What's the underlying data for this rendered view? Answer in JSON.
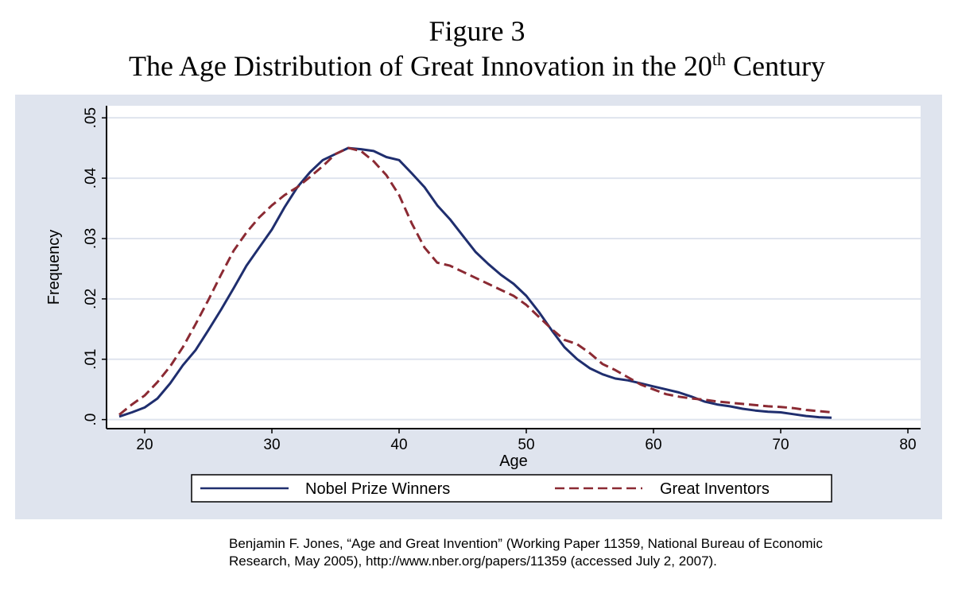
{
  "figure": {
    "label": "Figure 3",
    "title_main": "The Age Distribution of Great Innovation in the 20",
    "title_sup": "th",
    "title_end": " Century"
  },
  "source_note": "Benjamin F. Jones, “Age and Great Invention” (Working Paper 11359, National Bureau of Economic Research, May 2005), http://www.nber.org/papers/11359 (accessed July 2, 2007).",
  "colors": {
    "panel_background": "#dfe4ee",
    "plot_background": "#ffffff",
    "grid": "#dfe4ee",
    "nobel": "#1f2e6e",
    "inventors": "#8b2a33"
  },
  "chart_data": {
    "type": "line",
    "xlabel": "Age",
    "ylabel": "Frequency",
    "xlim": [
      17,
      81
    ],
    "ylim": [
      -0.0015,
      0.052
    ],
    "x_ticks": [
      20,
      30,
      40,
      50,
      60,
      70,
      80
    ],
    "x_tick_labels": [
      "20",
      "30",
      "40",
      "50",
      "60",
      "70",
      "80"
    ],
    "y_ticks": [
      0,
      0.01,
      0.02,
      0.03,
      0.04,
      0.05
    ],
    "y_tick_labels": [
      ".0",
      ".01",
      ".02",
      ".03",
      ".04",
      ".05"
    ],
    "grid": true,
    "legend_position": "bottom",
    "series": [
      {
        "name": "Nobel Prize Winners",
        "style": "solid",
        "x": [
          18,
          19,
          20,
          21,
          22,
          23,
          24,
          25,
          26,
          27,
          28,
          29,
          30,
          31,
          32,
          33,
          34,
          35,
          36,
          37,
          38,
          39,
          40,
          41,
          42,
          43,
          44,
          45,
          46,
          47,
          48,
          49,
          50,
          51,
          52,
          53,
          54,
          55,
          56,
          57,
          58,
          59,
          60,
          61,
          62,
          63,
          64,
          65,
          66,
          67,
          68,
          69,
          70,
          71,
          72,
          73,
          74
        ],
        "y": [
          0.0005,
          0.0012,
          0.002,
          0.0035,
          0.006,
          0.009,
          0.0115,
          0.0148,
          0.0182,
          0.0218,
          0.0255,
          0.0285,
          0.0315,
          0.0352,
          0.0385,
          0.041,
          0.043,
          0.044,
          0.045,
          0.0448,
          0.0445,
          0.0435,
          0.043,
          0.0408,
          0.0385,
          0.0355,
          0.0332,
          0.0305,
          0.0278,
          0.0258,
          0.024,
          0.0225,
          0.0205,
          0.0178,
          0.0148,
          0.012,
          0.01,
          0.0085,
          0.0075,
          0.0068,
          0.0065,
          0.006,
          0.0055,
          0.005,
          0.0045,
          0.0038,
          0.003,
          0.0025,
          0.0022,
          0.0018,
          0.0015,
          0.0013,
          0.0012,
          0.0009,
          0.0006,
          0.0004,
          0.0003
        ]
      },
      {
        "name": "Great Inventors",
        "style": "dashed",
        "x": [
          18,
          19,
          20,
          21,
          22,
          23,
          24,
          25,
          26,
          27,
          28,
          29,
          30,
          31,
          32,
          33,
          34,
          35,
          36,
          37,
          38,
          39,
          40,
          41,
          42,
          43,
          44,
          45,
          46,
          47,
          48,
          49,
          50,
          51,
          52,
          53,
          54,
          55,
          56,
          57,
          58,
          59,
          60,
          61,
          62,
          63,
          64,
          65,
          66,
          67,
          68,
          69,
          70,
          71,
          72,
          73,
          74
        ],
        "y": [
          0.0008,
          0.0025,
          0.004,
          0.0062,
          0.0088,
          0.012,
          0.0158,
          0.0198,
          0.024,
          0.028,
          0.031,
          0.0335,
          0.0355,
          0.0372,
          0.0385,
          0.0402,
          0.042,
          0.044,
          0.045,
          0.0445,
          0.0428,
          0.0405,
          0.0372,
          0.0325,
          0.0285,
          0.026,
          0.0255,
          0.0245,
          0.0235,
          0.0225,
          0.0215,
          0.0205,
          0.019,
          0.017,
          0.015,
          0.0132,
          0.0125,
          0.011,
          0.0092,
          0.0082,
          0.007,
          0.0058,
          0.005,
          0.0042,
          0.0038,
          0.0035,
          0.0033,
          0.003,
          0.0028,
          0.0026,
          0.0024,
          0.0022,
          0.0021,
          0.0019,
          0.0016,
          0.0014,
          0.0012
        ]
      }
    ]
  }
}
